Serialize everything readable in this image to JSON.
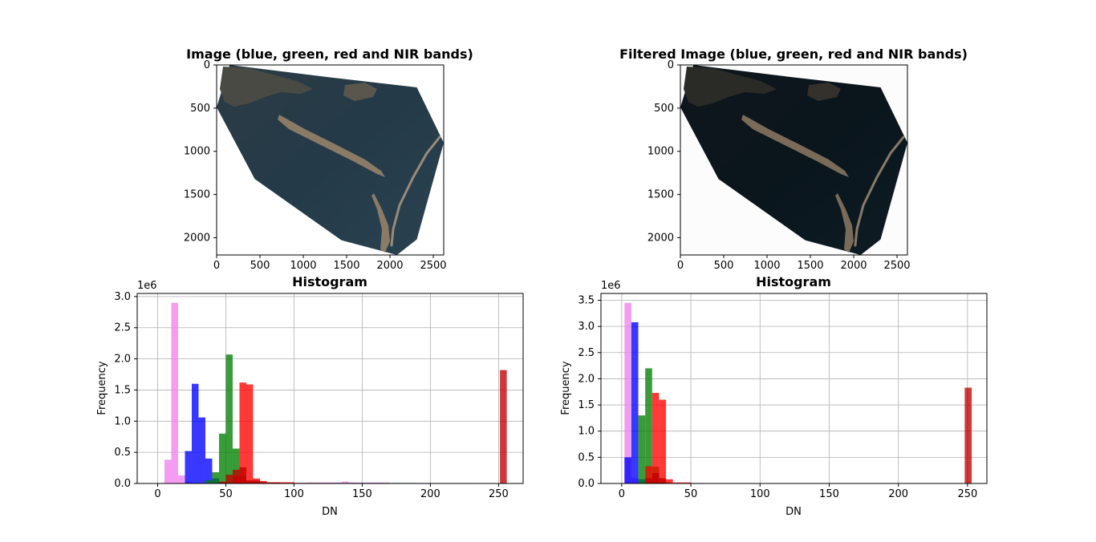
{
  "chart_data": [
    {
      "type": "image",
      "title": "Image (blue, green, red and NIR bands)",
      "x_ticks": [
        0,
        500,
        1000,
        1500,
        2000,
        2500
      ],
      "y_ticks": [
        0,
        500,
        1000,
        1500,
        2000
      ],
      "xlim": [
        0,
        2620
      ],
      "ylim": [
        2200,
        0
      ],
      "footprint": [
        [
          0,
          490
        ],
        [
          150,
          0
        ],
        [
          1280,
          140
        ],
        [
          2310,
          260
        ],
        [
          2620,
          900
        ],
        [
          2310,
          2020
        ],
        [
          2080,
          2200
        ],
        [
          1440,
          2030
        ],
        [
          440,
          1320
        ]
      ]
    },
    {
      "type": "image",
      "title": "Filtered Image (blue, green, red and NIR bands)",
      "x_ticks": [
        0,
        500,
        1000,
        1500,
        2000,
        2500
      ],
      "y_ticks": [
        0,
        500,
        1000,
        1500,
        2000
      ],
      "xlim": [
        0,
        2620
      ],
      "ylim": [
        2200,
        0
      ],
      "footprint": [
        [
          0,
          490
        ],
        [
          150,
          0
        ],
        [
          1280,
          140
        ],
        [
          2310,
          260
        ],
        [
          2620,
          900
        ],
        [
          2310,
          2020
        ],
        [
          2080,
          2200
        ],
        [
          1440,
          2030
        ],
        [
          440,
          1320
        ]
      ]
    },
    {
      "type": "bar",
      "title": "Histogram",
      "xlabel": "DN",
      "ylabel": "Frequency",
      "y_scale_label": "1e6",
      "xlim": [
        -15,
        268
      ],
      "ylim": [
        0,
        3.05
      ],
      "x_ticks": [
        0,
        50,
        100,
        150,
        200,
        250
      ],
      "y_ticks": [
        0.0,
        0.5,
        1.0,
        1.5,
        2.0,
        2.5,
        3.0
      ],
      "grid": true,
      "series": [
        {
          "color": "#ee82ee",
          "bins": [
            [
              5,
              10,
              0.38
            ],
            [
              10,
              15,
              2.9
            ],
            [
              15,
              20,
              0.13
            ],
            [
              20,
              25,
              0.03
            ],
            [
              25,
              110,
              0.01
            ],
            [
              110,
              135,
              0.015
            ],
            [
              135,
              140,
              0.03
            ],
            [
              140,
              170,
              0.015
            ],
            [
              170,
              230,
              0.007
            ]
          ]
        },
        {
          "color": "#0000ff",
          "bins": [
            [
              20,
              25,
              0.52
            ],
            [
              25,
              30,
              1.6
            ],
            [
              30,
              35,
              1.06
            ],
            [
              35,
              40,
              0.4
            ],
            [
              40,
              45,
              0.08
            ],
            [
              45,
              60,
              0.02
            ],
            [
              60,
              200,
              0.007
            ]
          ]
        },
        {
          "color": "#008000",
          "bins": [
            [
              35,
              40,
              0.05
            ],
            [
              40,
              45,
              0.18
            ],
            [
              45,
              50,
              0.8
            ],
            [
              50,
              55,
              2.07
            ],
            [
              55,
              60,
              0.56
            ],
            [
              60,
              65,
              0.12
            ],
            [
              65,
              80,
              0.03
            ],
            [
              80,
              190,
              0.008
            ]
          ]
        },
        {
          "color": "#ff0000",
          "bins": [
            [
              55,
              60,
              0.12
            ],
            [
              60,
              65,
              1.62
            ],
            [
              65,
              70,
              1.59
            ],
            [
              70,
              75,
              0.08
            ],
            [
              75,
              80,
              0.04
            ],
            [
              80,
              100,
              0.02
            ],
            [
              100,
              145,
              0.008
            ]
          ]
        },
        {
          "color": "#c00000",
          "bins": [
            [
              45,
              50,
              0.03
            ],
            [
              50,
              55,
              0.14
            ],
            [
              55,
              60,
              0.22
            ],
            [
              60,
              65,
              0.26
            ],
            [
              65,
              75,
              0.05
            ],
            [
              75,
              90,
              0.015
            ],
            [
              251,
              256,
              1.82
            ]
          ]
        }
      ]
    },
    {
      "type": "bar",
      "title": "Histogram",
      "xlabel": "DN",
      "ylabel": "Frequency",
      "y_scale_label": "1e6",
      "xlim": [
        -15,
        264
      ],
      "ylim": [
        0,
        3.63
      ],
      "x_ticks": [
        0,
        50,
        100,
        150,
        200,
        250
      ],
      "y_ticks": [
        0.0,
        0.5,
        1.0,
        1.5,
        2.0,
        2.5,
        3.0,
        3.5
      ],
      "grid": true,
      "series": [
        {
          "color": "#ee82ee",
          "bins": [
            [
              2,
              7,
              3.45
            ],
            [
              7,
              12,
              0.1
            ],
            [
              12,
              60,
              0.01
            ],
            [
              60,
              180,
              0.006
            ]
          ]
        },
        {
          "color": "#0000ff",
          "bins": [
            [
              2,
              7,
              0.5
            ],
            [
              7,
              12,
              3.08
            ],
            [
              12,
              17,
              0.08
            ],
            [
              17,
              30,
              0.02
            ],
            [
              30,
              200,
              0.006
            ]
          ]
        },
        {
          "color": "#008000",
          "bins": [
            [
              12,
              17,
              1.3
            ],
            [
              17,
              22,
              2.2
            ],
            [
              22,
              27,
              0.32
            ],
            [
              27,
              35,
              0.03
            ],
            [
              35,
              190,
              0.006
            ]
          ]
        },
        {
          "color": "#ff0000",
          "bins": [
            [
              17,
              22,
              0.33
            ],
            [
              22,
              27,
              1.73
            ],
            [
              27,
              32,
              1.6
            ],
            [
              32,
              37,
              0.08
            ],
            [
              37,
              50,
              0.02
            ],
            [
              50,
              165,
              0.006
            ]
          ]
        },
        {
          "color": "#c00000",
          "bins": [
            [
              17,
              22,
              0.1
            ],
            [
              22,
              27,
              0.2
            ],
            [
              27,
              32,
              0.1
            ],
            [
              248,
              253,
              1.83
            ]
          ]
        }
      ]
    }
  ]
}
